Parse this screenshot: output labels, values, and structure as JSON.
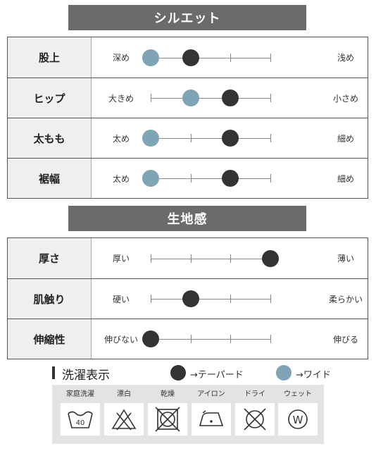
{
  "silhouette": {
    "title": "シルエット",
    "rows": [
      {
        "label": "股上",
        "left": "深め",
        "right": "浅め",
        "dark": 1,
        "blue": 0
      },
      {
        "label": "ヒップ",
        "left": "大きめ",
        "right": "小さめ",
        "dark": 2,
        "blue": 1
      },
      {
        "label": "太もも",
        "left": "太め",
        "right": "細め",
        "dark": 2,
        "blue": 0
      },
      {
        "label": "裾幅",
        "left": "太め",
        "right": "細め",
        "dark": 2,
        "blue": 0
      }
    ]
  },
  "texture": {
    "title": "生地感",
    "rows": [
      {
        "label": "厚さ",
        "left": "厚い",
        "right": "薄い",
        "dark": 3,
        "blue": null
      },
      {
        "label": "肌触り",
        "left": "硬い",
        "right": "柔らかい",
        "dark": 1,
        "blue": null
      },
      {
        "label": "伸縮性",
        "left": "伸びない",
        "right": "伸びる",
        "dark": 0,
        "blue": null
      }
    ]
  },
  "scale_positions": 4,
  "legend": {
    "title": "洗濯表示",
    "dark_label": "→テーパード",
    "blue_label": "→ワイド"
  },
  "care": [
    {
      "label": "家庭洗濯",
      "icon": "wash-40-icon",
      "text": "40"
    },
    {
      "label": "漂白",
      "icon": "no-bleach-icon"
    },
    {
      "label": "乾燥",
      "icon": "no-tumble-dry-icon"
    },
    {
      "label": "アイロン",
      "icon": "iron-low-icon"
    },
    {
      "label": "ドライ",
      "icon": "no-dry-clean-icon"
    },
    {
      "label": "ウェット",
      "icon": "wet-clean-icon",
      "text": "W"
    }
  ],
  "colors": {
    "dark": "#333333",
    "blue": "#7fa4b5",
    "banner": "#6b6b6b"
  }
}
